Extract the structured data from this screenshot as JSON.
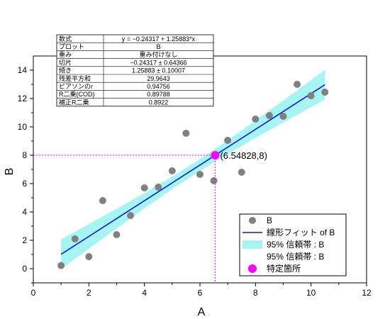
{
  "chart_data": {
    "type": "scatter",
    "xlabel": "A",
    "ylabel": "B",
    "xlim": [
      0,
      12
    ],
    "ylim": [
      -1,
      15
    ],
    "xticks": [
      0,
      2,
      4,
      6,
      8,
      10,
      12
    ],
    "yticks": [
      0,
      2,
      4,
      6,
      8,
      10,
      12,
      14
    ],
    "grid": false,
    "series": [
      {
        "name": "B",
        "x": [
          1.0,
          1.5,
          2.0,
          2.5,
          3.0,
          3.5,
          4.0,
          4.5,
          5.0,
          5.5,
          6.0,
          6.5,
          7.0,
          7.5,
          8.0,
          8.5,
          9.0,
          9.5,
          10.0,
          10.5
        ],
        "y": [
          0.22,
          2.1,
          0.85,
          4.8,
          2.4,
          3.75,
          5.7,
          5.75,
          6.9,
          9.55,
          6.65,
          6.2,
          9.05,
          6.8,
          10.55,
          10.8,
          10.75,
          13.0,
          12.2,
          12.45
        ],
        "color": "#808080"
      }
    ],
    "fit": {
      "legend": "線形フィット of B",
      "intercept": -0.24317,
      "slope": 1.25883,
      "x_range": [
        1.0,
        10.5
      ],
      "color": "#0a1ad6",
      "band_legend": "95% 信頼帯 : B",
      "band_color": "#a7f4f4",
      "band_half_width_ends": 1.05,
      "band_half_width_center": 0.42
    },
    "band_legend_2": "95% 信頼帯 : B",
    "special_point": {
      "legend": "特定箇所",
      "x": 6.54828,
      "y": 8,
      "label": "(6.54828,8)",
      "color": "#ff00ff"
    },
    "stats_table": [
      [
        "数式",
        "y = −0.24317 + 1.25883*x"
      ],
      [
        "プロット",
        "B"
      ],
      [
        "重み",
        "重み付けなし"
      ],
      [
        "切片",
        "−0.24317 ± 0.64366"
      ],
      [
        "傾き",
        "1.25883 ± 0.10007"
      ],
      [
        "残差平方和",
        "29.9643"
      ],
      [
        "ピアソンのr",
        "0.94756"
      ],
      [
        "R二乗(COD)",
        "0.89788"
      ],
      [
        "補正R二乗",
        "0.8922"
      ]
    ]
  }
}
